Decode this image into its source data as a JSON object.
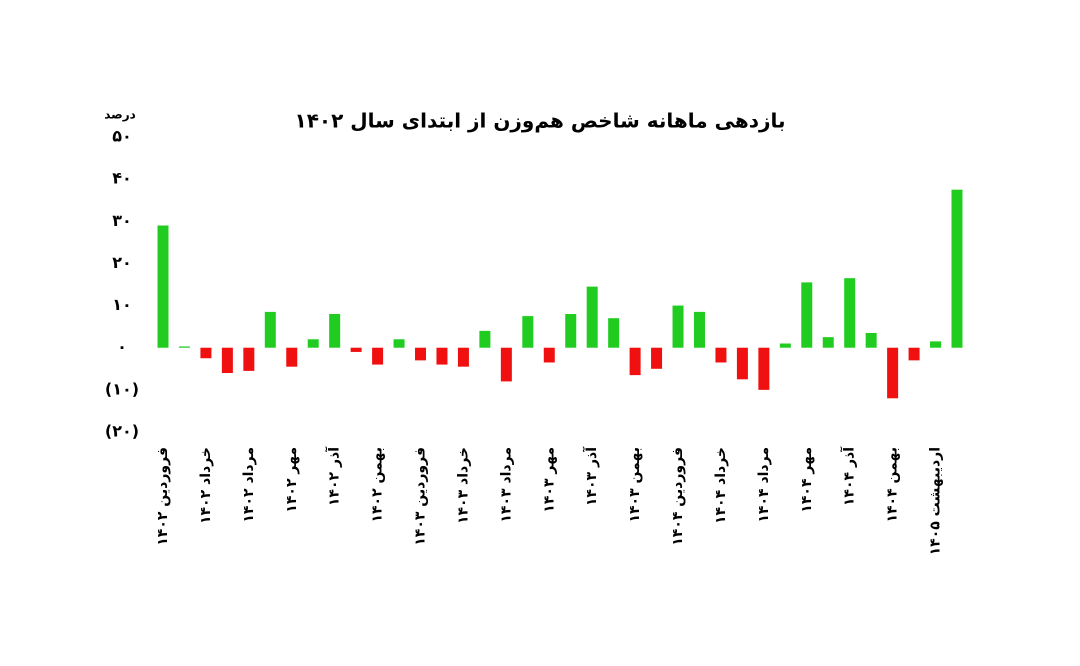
{
  "chart_data": {
    "type": "bar",
    "title": "بازدهی ماهانه شاخص هم‌وزن از ابتدای سال ۱۴۰۲",
    "y_label": "درصد",
    "categories": [
      "فروردین ۱۴۰۲",
      null,
      "خرداد ۱۴۰۲",
      null,
      "مرداد ۱۴۰۲",
      null,
      "مهر ۱۴۰۲",
      null,
      "آذر ۱۴۰۲",
      null,
      "بهمن ۱۴۰۲",
      null,
      "فروردین ۱۴۰۳",
      null,
      "خرداد ۱۴۰۳",
      null,
      "مرداد ۱۴۰۳",
      null,
      "مهر ۱۴۰۳",
      null,
      "آذر ۱۴۰۳",
      null,
      "بهمن ۱۴۰۳",
      null,
      "فروردین ۱۴۰۴",
      null,
      "خرداد ۱۴۰۴",
      null,
      "مرداد ۱۴۰۴",
      null,
      "مهر ۱۴۰۴",
      null,
      "آذر ۱۴۰۴",
      null,
      "بهمن ۱۴۰۴",
      null,
      "اردیبهشت ۱۴۰۵",
      null
    ],
    "values": [
      29,
      0.3,
      -2.5,
      -6,
      -5.5,
      8.5,
      -4.5,
      2,
      8,
      -1,
      -4,
      2,
      -3,
      -4,
      -4.5,
      4,
      -8,
      7.5,
      -3.5,
      8,
      14.5,
      7,
      -6.5,
      -5,
      10,
      8.5,
      -3.5,
      -7.5,
      -10,
      1,
      15.5,
      2.5,
      16.5,
      3.5,
      -12,
      -3,
      1.5,
      37.5
    ],
    "positive_color": "#1fcc1f",
    "negative_color": "#f01010",
    "ylim": [
      -20,
      50
    ],
    "yticks": [
      {
        "value": -20,
        "label": "(۲۰)"
      },
      {
        "value": -10,
        "label": "(۱۰)"
      },
      {
        "value": 0,
        "label": "۰"
      },
      {
        "value": 10,
        "label": "۱۰"
      },
      {
        "value": 20,
        "label": "۲۰"
      },
      {
        "value": 30,
        "label": "۳۰"
      },
      {
        "value": 40,
        "label": "۴۰"
      },
      {
        "value": 50,
        "label": "۵۰"
      }
    ]
  }
}
